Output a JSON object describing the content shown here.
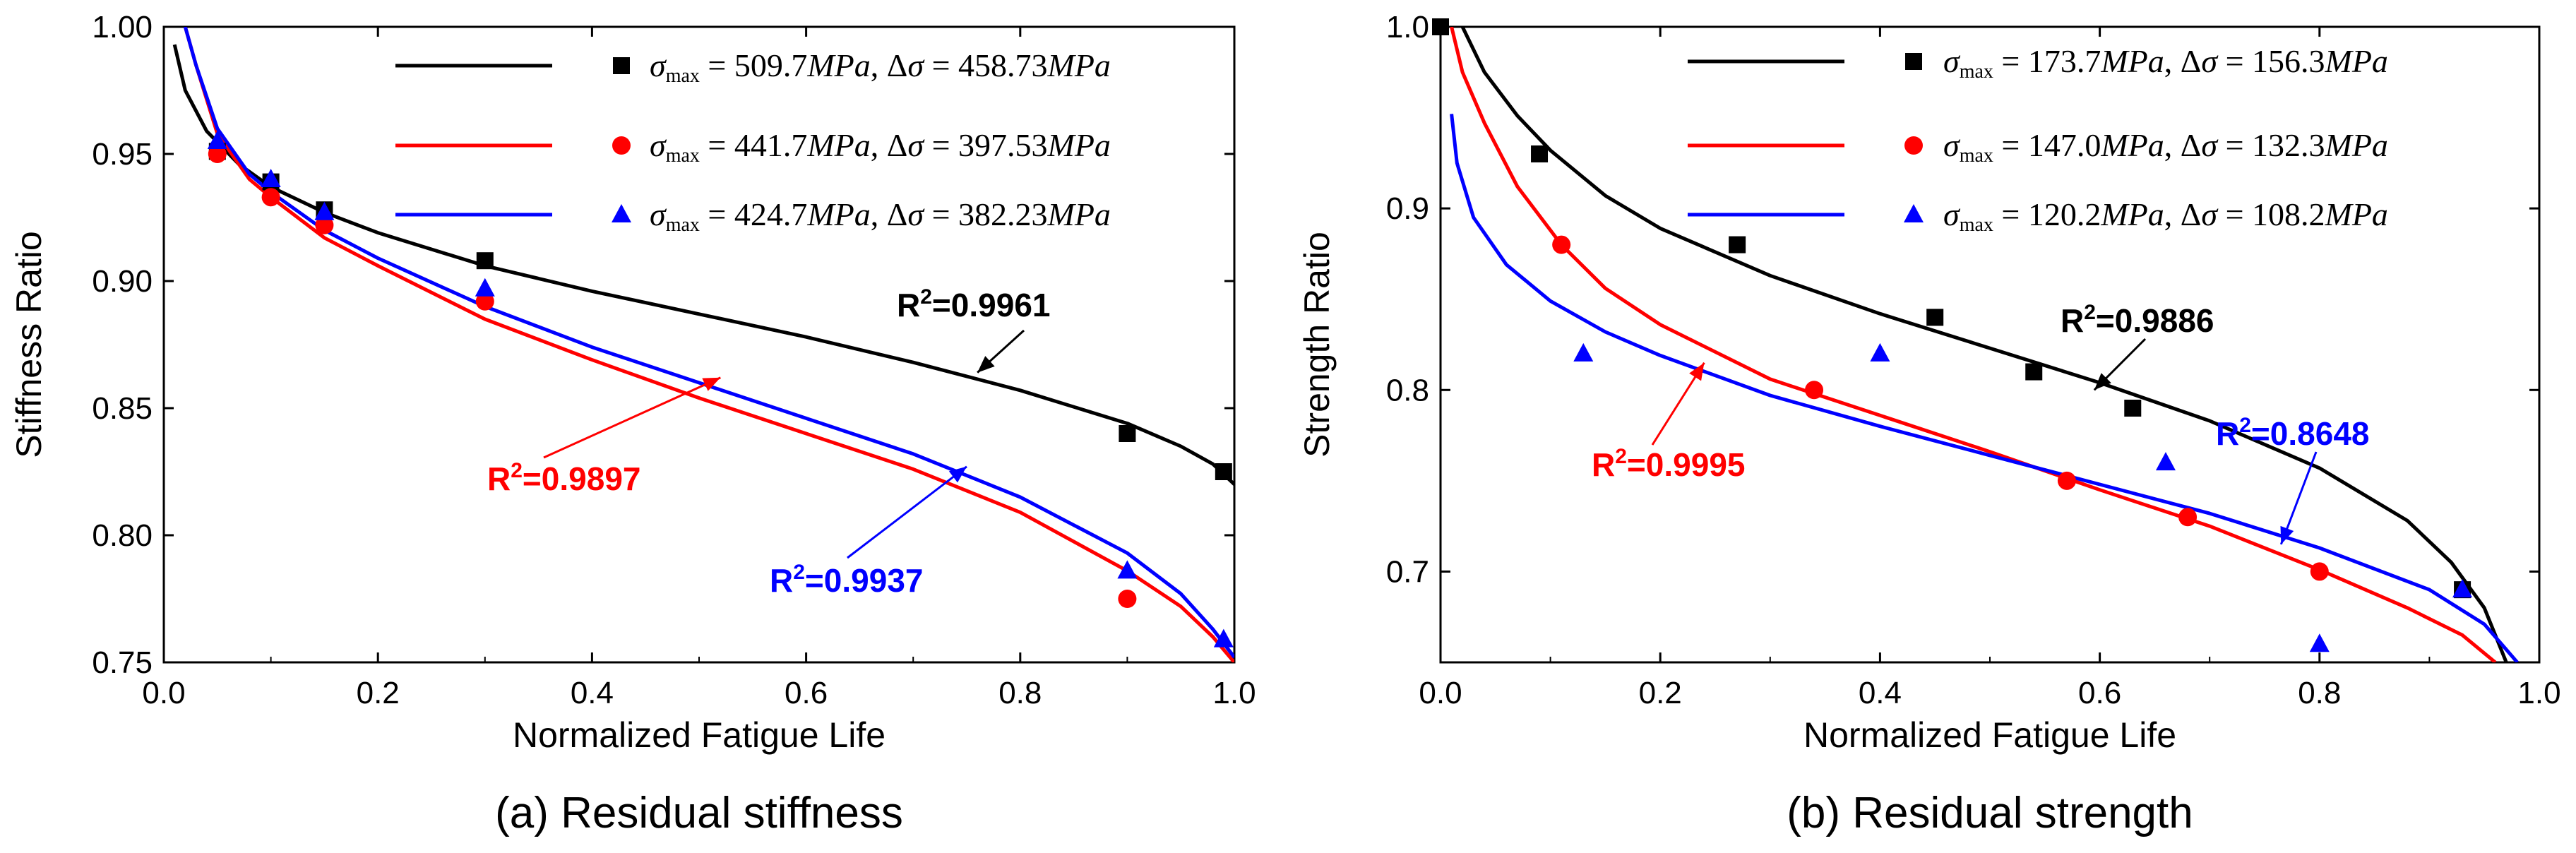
{
  "chart_data": [
    {
      "type": "line",
      "subtitle": "(a) Residual stiffness",
      "xlabel": "Normalized Fatigue Life",
      "ylabel": "Stiffness Ratio",
      "xlim": [
        0.0,
        1.0
      ],
      "ylim": [
        0.75,
        1.0
      ],
      "x_ticks": [
        "0.0",
        "0.2",
        "0.4",
        "0.6",
        "0.8",
        "1.0"
      ],
      "y_ticks": [
        "0.75",
        "0.80",
        "0.85",
        "0.90",
        "0.95",
        "1.00"
      ],
      "legend_position": "top-right",
      "series": [
        {
          "name": "σmax = 509.7MPa, Δσ = 458.73MPa",
          "sigma_max": "509.7",
          "delta_sigma": "458.73",
          "color": "#000000",
          "marker": "square",
          "r2_label": "R²=0.9961",
          "points": [
            [
              0.05,
              0.951
            ],
            [
              0.1,
              0.939
            ],
            [
              0.15,
              0.928
            ],
            [
              0.3,
              0.908
            ],
            [
              0.9,
              0.84
            ],
            [
              0.99,
              0.825
            ]
          ],
          "fit": [
            [
              0.01,
              0.993
            ],
            [
              0.02,
              0.975
            ],
            [
              0.04,
              0.959
            ],
            [
              0.07,
              0.946
            ],
            [
              0.1,
              0.937
            ],
            [
              0.15,
              0.927
            ],
            [
              0.2,
              0.919
            ],
            [
              0.3,
              0.906
            ],
            [
              0.4,
              0.896
            ],
            [
              0.5,
              0.887
            ],
            [
              0.6,
              0.878
            ],
            [
              0.7,
              0.868
            ],
            [
              0.8,
              0.857
            ],
            [
              0.9,
              0.844
            ],
            [
              0.95,
              0.835
            ],
            [
              0.98,
              0.828
            ],
            [
              1.0,
              0.82
            ]
          ]
        },
        {
          "name": "σmax = 441.7MPa, Δσ = 397.53MPa",
          "sigma_max": "441.7",
          "delta_sigma": "397.53",
          "color": "#ff0000",
          "marker": "circle",
          "r2_label": "R²=0.9897",
          "points": [
            [
              0.05,
              0.95
            ],
            [
              0.1,
              0.933
            ],
            [
              0.15,
              0.922
            ],
            [
              0.3,
              0.892
            ],
            [
              0.9,
              0.775
            ]
          ],
          "fit": [
            [
              0.02,
              1.0
            ],
            [
              0.03,
              0.985
            ],
            [
              0.05,
              0.958
            ],
            [
              0.08,
              0.94
            ],
            [
              0.1,
              0.933
            ],
            [
              0.15,
              0.917
            ],
            [
              0.2,
              0.906
            ],
            [
              0.3,
              0.885
            ],
            [
              0.4,
              0.869
            ],
            [
              0.5,
              0.854
            ],
            [
              0.6,
              0.84
            ],
            [
              0.7,
              0.826
            ],
            [
              0.8,
              0.809
            ],
            [
              0.9,
              0.786
            ],
            [
              0.95,
              0.772
            ],
            [
              0.98,
              0.76
            ],
            [
              1.0,
              0.75
            ]
          ]
        },
        {
          "name": "σmax = 424.7MPa, Δσ = 382.23MPa",
          "sigma_max": "424.7",
          "delta_sigma": "382.23",
          "color": "#0000ff",
          "marker": "triangle",
          "r2_label": "R²=0.9937",
          "points": [
            [
              0.05,
              0.955
            ],
            [
              0.1,
              0.94
            ],
            [
              0.15,
              0.927
            ],
            [
              0.3,
              0.897
            ],
            [
              0.9,
              0.786
            ],
            [
              0.99,
              0.759
            ]
          ],
          "fit": [
            [
              0.02,
              1.0
            ],
            [
              0.03,
              0.985
            ],
            [
              0.05,
              0.96
            ],
            [
              0.08,
              0.942
            ],
            [
              0.1,
              0.935
            ],
            [
              0.15,
              0.92
            ],
            [
              0.2,
              0.909
            ],
            [
              0.3,
              0.89
            ],
            [
              0.4,
              0.874
            ],
            [
              0.5,
              0.86
            ],
            [
              0.6,
              0.846
            ],
            [
              0.7,
              0.832
            ],
            [
              0.8,
              0.815
            ],
            [
              0.9,
              0.793
            ],
            [
              0.95,
              0.777
            ],
            [
              0.98,
              0.763
            ],
            [
              1.0,
              0.752
            ]
          ]
        }
      ],
      "annotations": [
        {
          "text": "R²=0.9961",
          "color": "#000000",
          "series": 0,
          "arrow_to": [
            0.76,
            0.864
          ]
        },
        {
          "text": "R²=0.9897",
          "color": "#ff0000",
          "series": 1,
          "arrow_to": [
            0.52,
            0.862
          ]
        },
        {
          "text": "R²=0.9937",
          "color": "#0000ff",
          "series": 2,
          "arrow_to": [
            0.75,
            0.827
          ]
        }
      ]
    },
    {
      "type": "line",
      "subtitle": "(b) Residual strength",
      "xlabel": "Normalized Fatigue Life",
      "ylabel": "Strength Ratio",
      "xlim": [
        0.0,
        1.0
      ],
      "ylim": [
        0.65,
        1.0
      ],
      "x_ticks": [
        "0.0",
        "0.2",
        "0.4",
        "0.6",
        "0.8",
        "1.0"
      ],
      "y_ticks": [
        "0.7",
        "0.8",
        "0.9",
        "1.0"
      ],
      "legend_position": "top-right",
      "series": [
        {
          "name": "σmax = 173.7MPa, Δσ = 156.3MPa",
          "sigma_max": "173.7",
          "delta_sigma": "156.3",
          "color": "#000000",
          "marker": "square",
          "r2_label": "R²=0.9886",
          "points": [
            [
              0.0,
              1.0
            ],
            [
              0.09,
              0.93
            ],
            [
              0.27,
              0.88
            ],
            [
              0.45,
              0.84
            ],
            [
              0.54,
              0.81
            ],
            [
              0.63,
              0.79
            ],
            [
              0.93,
              0.69
            ]
          ],
          "fit": [
            [
              0.02,
              1.0
            ],
            [
              0.04,
              0.975
            ],
            [
              0.07,
              0.951
            ],
            [
              0.1,
              0.932
            ],
            [
              0.15,
              0.907
            ],
            [
              0.2,
              0.889
            ],
            [
              0.3,
              0.863
            ],
            [
              0.4,
              0.842
            ],
            [
              0.5,
              0.823
            ],
            [
              0.6,
              0.804
            ],
            [
              0.7,
              0.783
            ],
            [
              0.8,
              0.757
            ],
            [
              0.88,
              0.728
            ],
            [
              0.92,
              0.705
            ],
            [
              0.95,
              0.68
            ],
            [
              0.97,
              0.65
            ]
          ]
        },
        {
          "name": "σmax = 147.0MPa, Δσ = 132.3MPa",
          "sigma_max": "147.0",
          "delta_sigma": "132.3",
          "color": "#ff0000",
          "marker": "circle",
          "r2_label": "R²=0.9995",
          "points": [
            [
              0.11,
              0.88
            ],
            [
              0.34,
              0.8
            ],
            [
              0.57,
              0.75
            ],
            [
              0.68,
              0.73
            ],
            [
              0.8,
              0.7
            ]
          ],
          "fit": [
            [
              0.01,
              1.0
            ],
            [
              0.02,
              0.975
            ],
            [
              0.04,
              0.947
            ],
            [
              0.07,
              0.912
            ],
            [
              0.11,
              0.88
            ],
            [
              0.15,
              0.856
            ],
            [
              0.2,
              0.836
            ],
            [
              0.3,
              0.806
            ],
            [
              0.4,
              0.786
            ],
            [
              0.5,
              0.766
            ],
            [
              0.6,
              0.745
            ],
            [
              0.7,
              0.725
            ],
            [
              0.8,
              0.701
            ],
            [
              0.88,
              0.68
            ],
            [
              0.93,
              0.665
            ],
            [
              0.96,
              0.65
            ]
          ]
        },
        {
          "name": "σmax = 120.2MPa, Δσ = 108.2MPa",
          "sigma_max": "120.2",
          "delta_sigma": "108.2",
          "color": "#0000ff",
          "marker": "triangle",
          "r2_label": "R²=0.8648",
          "points": [
            [
              0.13,
              0.82
            ],
            [
              0.4,
              0.82
            ],
            [
              0.66,
              0.76
            ],
            [
              0.8,
              0.66
            ],
            [
              0.93,
              0.69
            ]
          ],
          "fit": [
            [
              0.01,
              0.952
            ],
            [
              0.015,
              0.925
            ],
            [
              0.03,
              0.895
            ],
            [
              0.06,
              0.869
            ],
            [
              0.1,
              0.849
            ],
            [
              0.15,
              0.832
            ],
            [
              0.2,
              0.819
            ],
            [
              0.3,
              0.797
            ],
            [
              0.4,
              0.78
            ],
            [
              0.5,
              0.764
            ],
            [
              0.6,
              0.748
            ],
            [
              0.7,
              0.732
            ],
            [
              0.8,
              0.713
            ],
            [
              0.9,
              0.69
            ],
            [
              0.95,
              0.671
            ],
            [
              0.98,
              0.65
            ]
          ]
        }
      ],
      "annotations": [
        {
          "text": "R²=0.9886",
          "color": "#000000",
          "series": 0,
          "arrow_to": [
            0.595,
            0.8
          ]
        },
        {
          "text": "R²=0.9995",
          "color": "#ff0000",
          "series": 1,
          "arrow_to": [
            0.24,
            0.815
          ]
        },
        {
          "text": "R²=0.8648",
          "color": "#0000ff",
          "series": 2,
          "arrow_to": [
            0.765,
            0.715
          ]
        }
      ]
    }
  ]
}
